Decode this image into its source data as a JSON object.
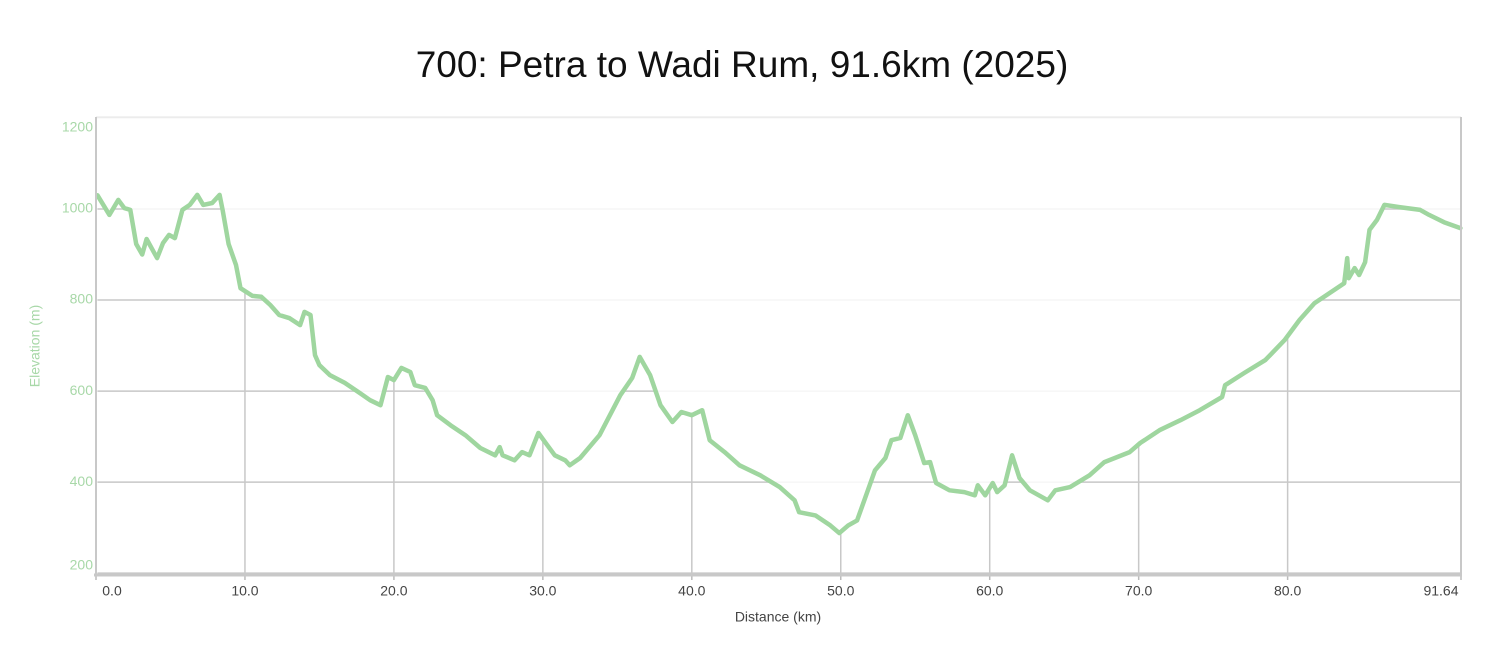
{
  "chart_data": {
    "type": "line",
    "title": "700: Petra to Wadi Rum, 91.6km (2025)",
    "x_label": "Distance (km)",
    "y_label": "Elevation (m)",
    "xlim": [
      0,
      91.64
    ],
    "ylim": [
      196,
      1202
    ],
    "xticks": [
      {
        "value": 0,
        "label": "0.0"
      },
      {
        "value": 10,
        "label": "10.0"
      },
      {
        "value": 20,
        "label": "20.0"
      },
      {
        "value": 30,
        "label": "30.0"
      },
      {
        "value": 40,
        "label": "40.0"
      },
      {
        "value": 50,
        "label": "50.0"
      },
      {
        "value": 60,
        "label": "60.0"
      },
      {
        "value": 70,
        "label": "70.0"
      },
      {
        "value": 80,
        "label": "80.0"
      },
      91.64
    ],
    "yticks": [
      200,
      400,
      600,
      800,
      1000,
      1200
    ],
    "grid": true,
    "x": [
      0.1,
      0.9,
      1.5,
      1.9,
      2.3,
      2.7,
      3.1,
      3.4,
      3.8,
      4.1,
      4.5,
      4.9,
      5.3,
      5.8,
      6.3,
      6.8,
      7.2,
      7.8,
      8.3,
      8.5,
      8.9,
      9.4,
      9.7,
      10.5,
      11.1,
      11.7,
      12.3,
      13.0,
      13.7,
      14.0,
      14.4,
      14.7,
      15.0,
      15.7,
      16.7,
      17.7,
      18.4,
      19.1,
      19.6,
      20.0,
      20.5,
      21.1,
      21.4,
      22.1,
      22.6,
      22.9,
      23.8,
      24.8,
      25.8,
      26.8,
      27.1,
      27.3,
      28.1,
      28.6,
      29.1,
      29.7,
      30.3,
      30.8,
      31.5,
      31.8,
      32.5,
      33.8,
      35.2,
      36.0,
      36.5,
      37.2,
      37.9,
      38.7,
      39.3,
      40.0,
      40.7,
      41.2,
      42.2,
      43.2,
      44.6,
      45.9,
      46.9,
      47.2,
      48.3,
      49.3,
      49.9,
      50.5,
      51.1,
      51.7,
      52.3,
      53.0,
      53.4,
      54.0,
      54.5,
      55.0,
      55.6,
      56.0,
      56.4,
      57.3,
      58.3,
      59.0,
      59.2,
      59.7,
      60.2,
      60.5,
      61.0,
      61.5,
      62.0,
      62.7,
      63.9,
      64.4,
      65.4,
      66.7,
      67.7,
      69.4,
      70.1,
      71.4,
      72.8,
      74.1,
      75.6,
      75.8,
      77.1,
      78.5,
      79.8,
      80.8,
      81.8,
      82.8,
      83.8,
      84.0,
      84.1,
      84.5,
      84.8,
      85.2,
      85.5,
      86.0,
      86.5,
      87.5,
      88.9,
      89.5,
      90.5,
      91.6
    ],
    "series": [
      {
        "name": "Elevation",
        "color": "#9fd69f",
        "values": [
          1030,
          987,
          1020,
          1002,
          998,
          923,
          900,
          934,
          910,
          892,
          925,
          943,
          936,
          998,
          1009,
          1031,
          1009,
          1013,
          1031,
          998,
          923,
          877,
          826,
          809,
          807,
          789,
          767,
          760,
          745,
          774,
          767,
          679,
          657,
          635,
          618,
          596,
          580,
          569,
          631,
          624,
          651,
          642,
          613,
          607,
          580,
          547,
          525,
          503,
          475,
          459,
          477,
          459,
          448,
          466,
          459,
          508,
          481,
          459,
          448,
          437,
          453,
          503,
          591,
          629,
          675,
          635,
          569,
          532,
          554,
          547,
          558,
          492,
          466,
          437,
          415,
          389,
          360,
          334,
          327,
          305,
          288,
          305,
          316,
          371,
          426,
          453,
          492,
          497,
          547,
          503,
          442,
          444,
          398,
          382,
          378,
          371,
          393,
          371,
          398,
          378,
          393,
          459,
          409,
          382,
          360,
          382,
          389,
          415,
          444,
          466,
          486,
          514,
          536,
          558,
          587,
          613,
          640,
          668,
          712,
          756,
          793,
          815,
          837,
          892,
          848,
          870,
          855,
          883,
          954,
          976,
          1009,
          1004,
          998,
          987,
          971,
          958
        ]
      }
    ]
  }
}
